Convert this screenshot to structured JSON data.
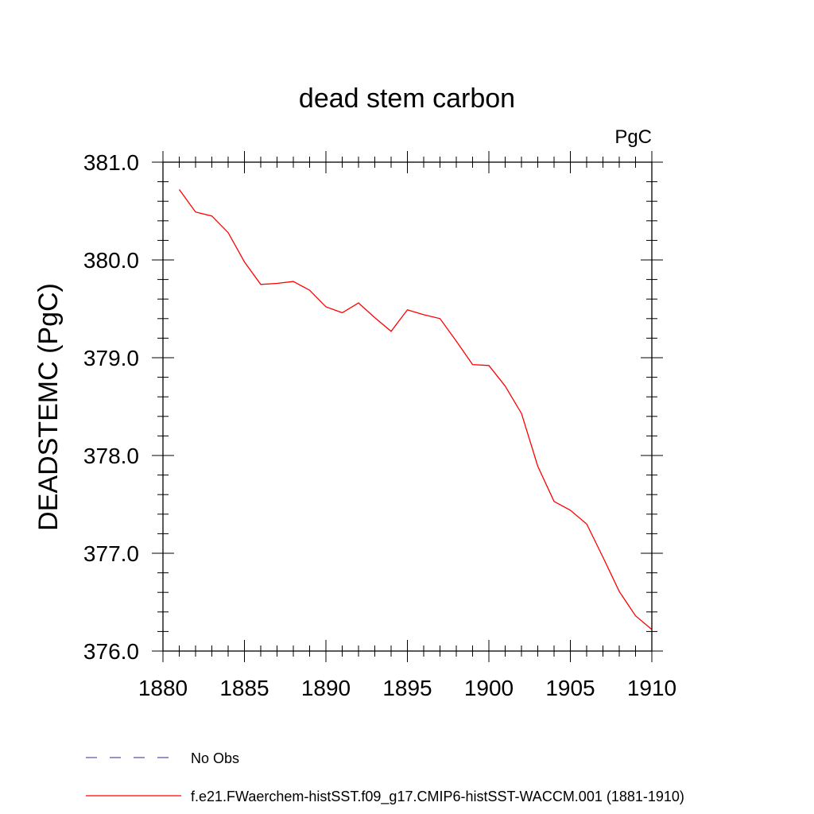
{
  "chart_data": {
    "type": "line",
    "title": "dead stem carbon",
    "units_label": "PgC",
    "ylabel": "DEADSTEMC  (PgC)",
    "xlabel": "",
    "xlim": [
      1880,
      1910
    ],
    "ylim": [
      376.0,
      381.0
    ],
    "x_ticks": [
      1880,
      1885,
      1890,
      1895,
      1900,
      1905,
      1910
    ],
    "y_ticks": [
      "376.0",
      "377.0",
      "378.0",
      "379.0",
      "380.0",
      "381.0"
    ],
    "grid": false,
    "series": [
      {
        "name": "f.e21.FWaerchem-histSST.f09_g17.CMIP6-histSST-WACCM.001 (1881-1910)",
        "color": "#ff0000",
        "x": [
          1881,
          1882,
          1883,
          1884,
          1885,
          1886,
          1887,
          1888,
          1889,
          1890,
          1891,
          1892,
          1893,
          1894,
          1895,
          1896,
          1897,
          1898,
          1899,
          1900,
          1901,
          1902,
          1903,
          1904,
          1905,
          1906,
          1907,
          1908,
          1909,
          1910
        ],
        "y": [
          380.72,
          380.49,
          380.45,
          380.28,
          379.98,
          379.75,
          379.76,
          379.78,
          379.69,
          379.52,
          379.46,
          379.56,
          379.41,
          379.27,
          379.49,
          379.44,
          379.4,
          379.17,
          378.93,
          378.92,
          378.71,
          378.43,
          377.89,
          377.53,
          377.44,
          377.3,
          376.96,
          376.61,
          376.36,
          376.22
        ]
      }
    ],
    "legend": {
      "placement": "bottom-left",
      "entries": [
        {
          "label": "No Obs",
          "color": "#5a4fb0",
          "style": "dashed"
        },
        {
          "label": "f.e21.FWaerchem-histSST.f09_g17.CMIP6-histSST-WACCM.001 (1881-1910)",
          "color": "#ff0000",
          "style": "solid"
        }
      ]
    }
  }
}
